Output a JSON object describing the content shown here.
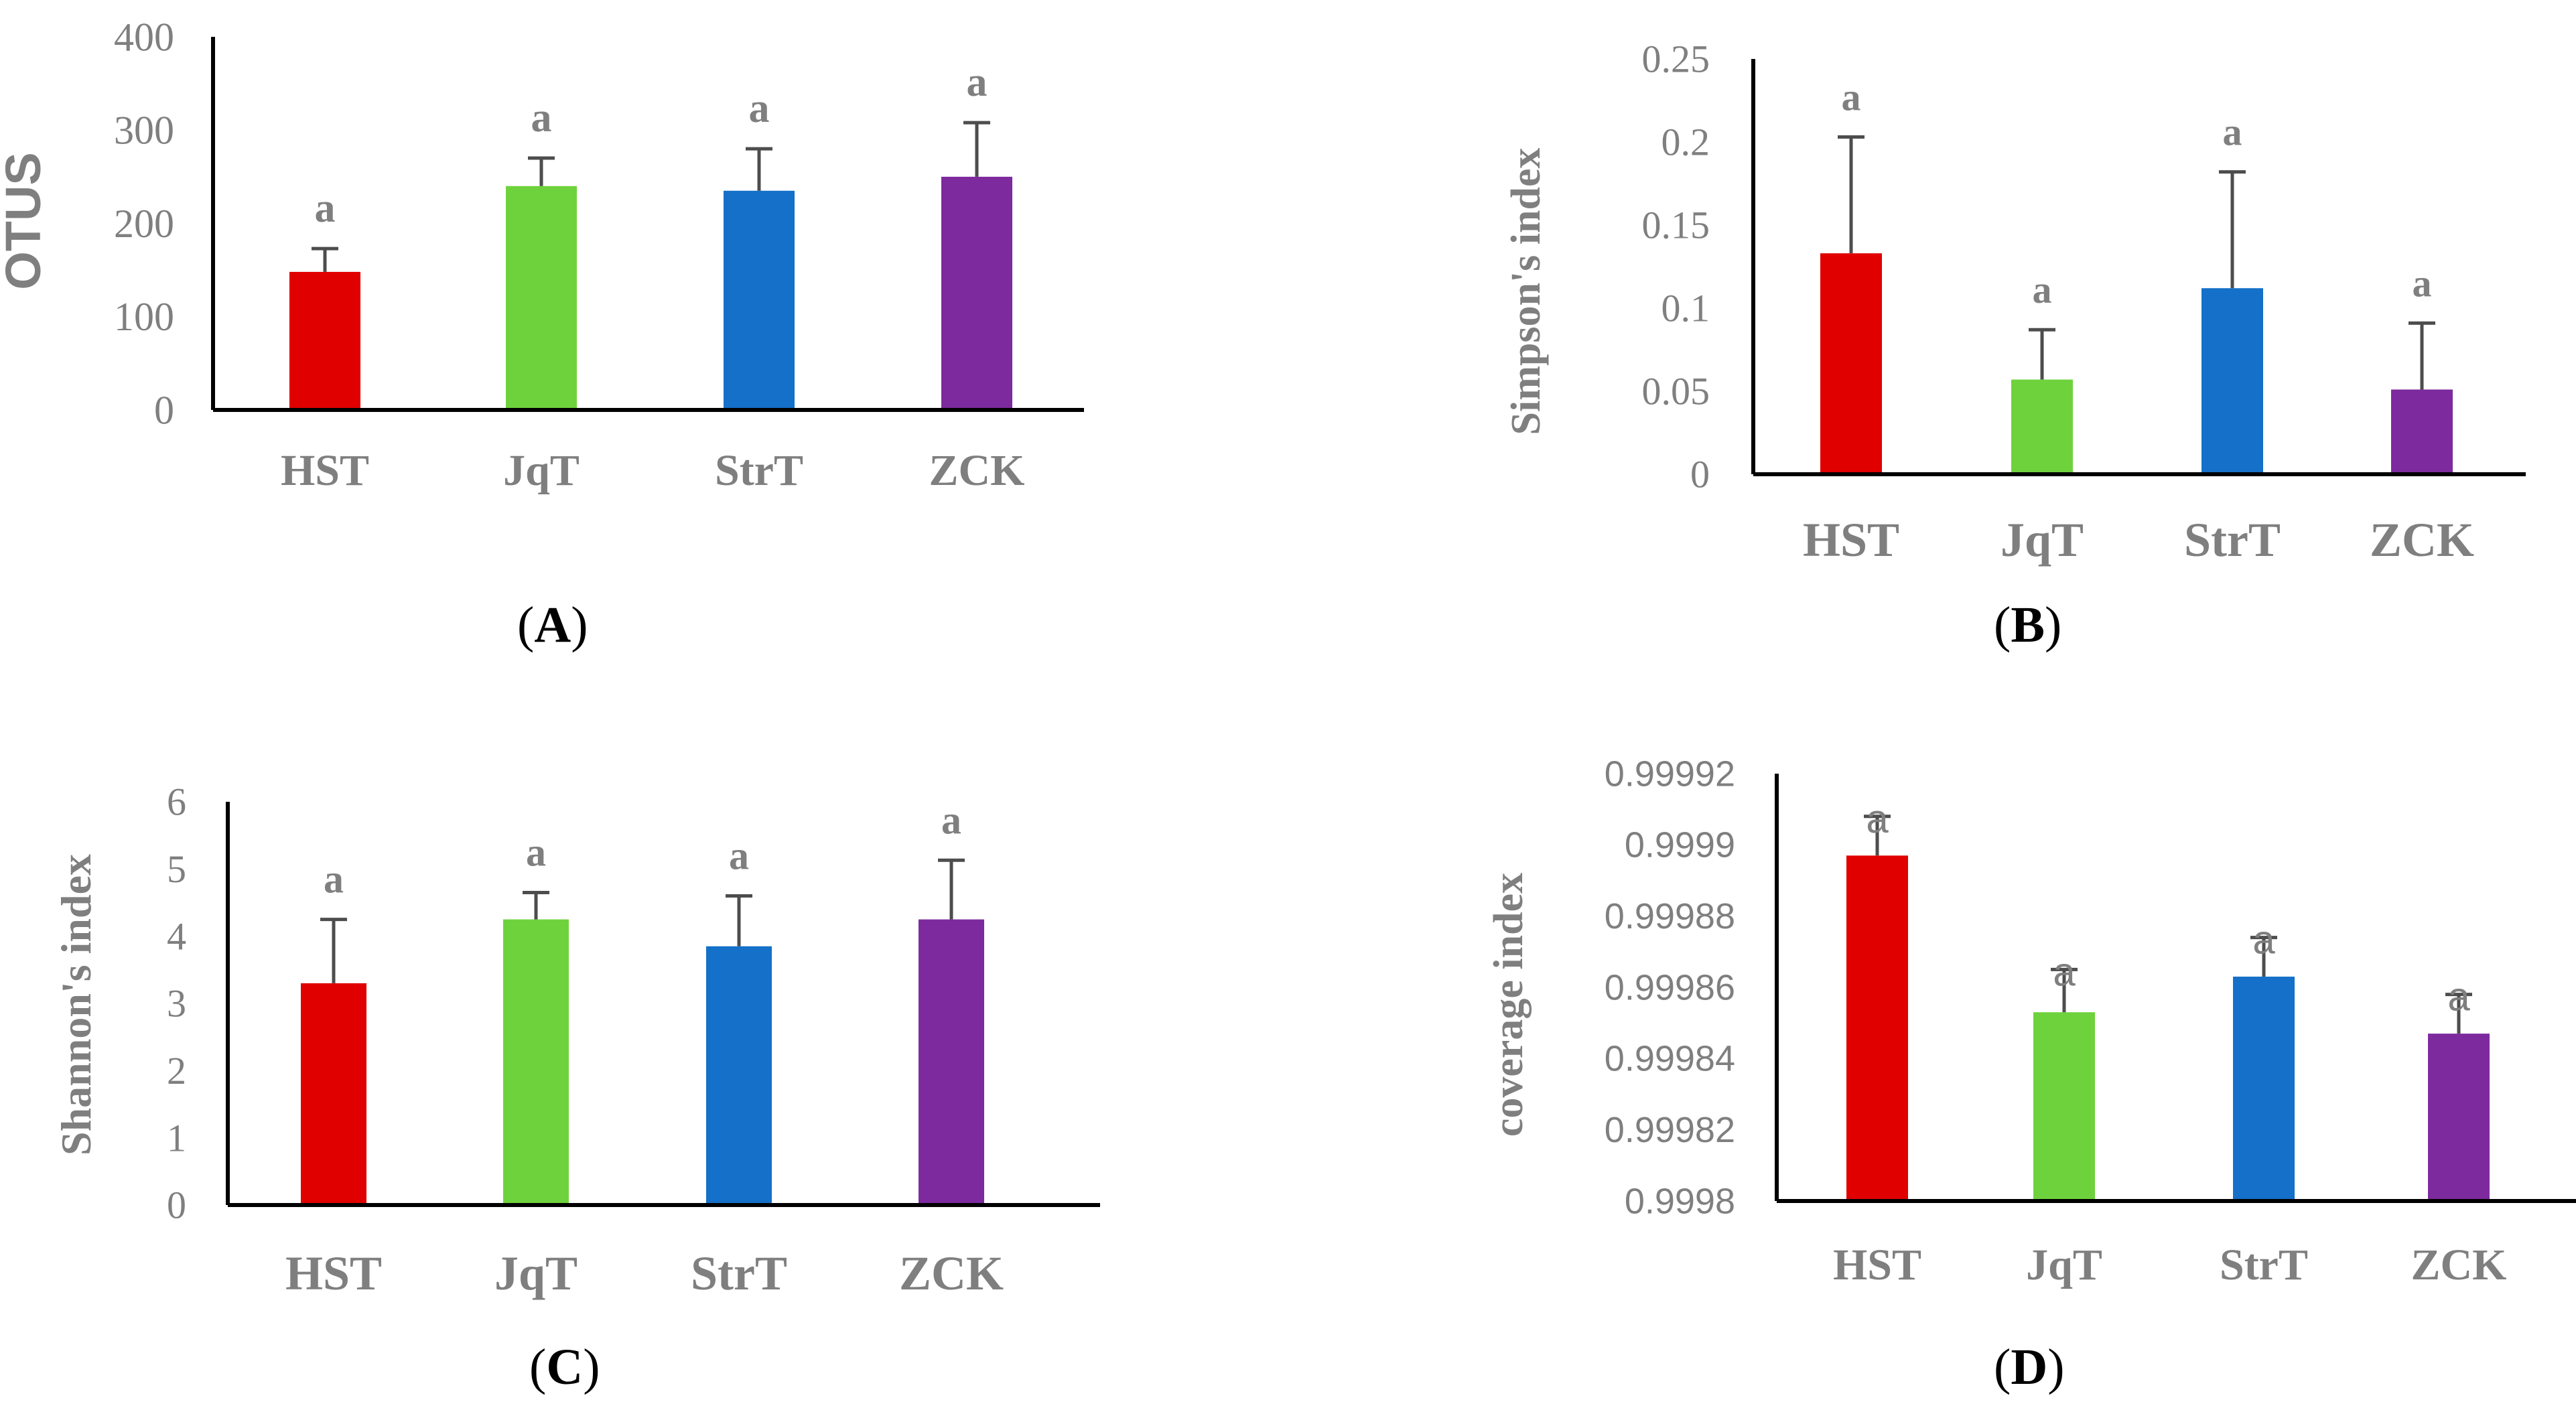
{
  "panels": [
    {
      "label": "A",
      "chart_data": {
        "type": "bar",
        "title": "",
        "xlabel": "",
        "ylabel": "OTUS",
        "categories": [
          "HST",
          "JqT",
          "StrT",
          "ZCK"
        ],
        "values": [
          148,
          240,
          235,
          250
        ],
        "errors": [
          25,
          30,
          45,
          58
        ],
        "letters": [
          "a",
          "a",
          "a",
          "a"
        ],
        "ylim": [
          0,
          400
        ],
        "yticks": [
          "0",
          "100",
          "200",
          "300",
          "400"
        ],
        "ytick_values": [
          0,
          100,
          200,
          300,
          400
        ]
      }
    },
    {
      "label": "B",
      "chart_data": {
        "type": "bar",
        "title": "",
        "xlabel": "",
        "ylabel": "Simpson's index",
        "categories": [
          "HST",
          "JqT",
          "StrT",
          "ZCK"
        ],
        "values": [
          0.133,
          0.057,
          0.112,
          0.051
        ],
        "errors": [
          0.07,
          0.03,
          0.07,
          0.04
        ],
        "letters": [
          "a",
          "a",
          "a",
          "a"
        ],
        "ylim": [
          0,
          0.25
        ],
        "yticks": [
          "0",
          "0.05",
          "0.1",
          "0.15",
          "0.2",
          "0.25"
        ],
        "ytick_values": [
          0,
          0.05,
          0.1,
          0.15,
          0.2,
          0.25
        ]
      }
    },
    {
      "label": "C",
      "chart_data": {
        "type": "bar",
        "title": "",
        "xlabel": "",
        "ylabel": "Shannon's index",
        "categories": [
          "HST",
          "JqT",
          "StrT",
          "ZCK"
        ],
        "values": [
          3.3,
          4.25,
          3.85,
          4.25
        ],
        "errors": [
          0.95,
          0.4,
          0.75,
          0.88
        ],
        "letters": [
          "a",
          "a",
          "a",
          "a"
        ],
        "ylim": [
          0,
          6
        ],
        "yticks": [
          "0",
          "1",
          "2",
          "3",
          "4",
          "5",
          "6"
        ],
        "ytick_values": [
          0,
          1,
          2,
          3,
          4,
          5,
          6
        ]
      }
    },
    {
      "label": "D",
      "chart_data": {
        "type": "bar",
        "title": "",
        "xlabel": "",
        "ylabel": "coverage  index",
        "categories": [
          "HST",
          "JqT",
          "StrT",
          "ZCK"
        ],
        "values": [
          0.999897,
          0.999853,
          0.999863,
          0.999847
        ],
        "errors": [
          1.1e-05,
          1.2e-05,
          1.1e-05,
          1.1e-05
        ],
        "letters": [
          "a",
          "a",
          "a",
          "a"
        ],
        "ylim": [
          0.9998,
          0.99992
        ],
        "yticks": [
          "0.9998",
          "0.99982",
          "0.99984",
          "0.99986",
          "0.99988",
          "0.9999",
          "0.99992"
        ],
        "ytick_values": [
          0.9998,
          0.99982,
          0.99984,
          0.99986,
          0.99988,
          0.9999,
          0.99992
        ]
      }
    }
  ],
  "colors": {
    "HST": "#e00000",
    "JqT": "#6ed23c",
    "StrT": "#1470c8",
    "ZCK": "#7d2a9e",
    "axis": "#000000",
    "text": "#7f7f7f",
    "errorbar": "#4d4d4d"
  }
}
